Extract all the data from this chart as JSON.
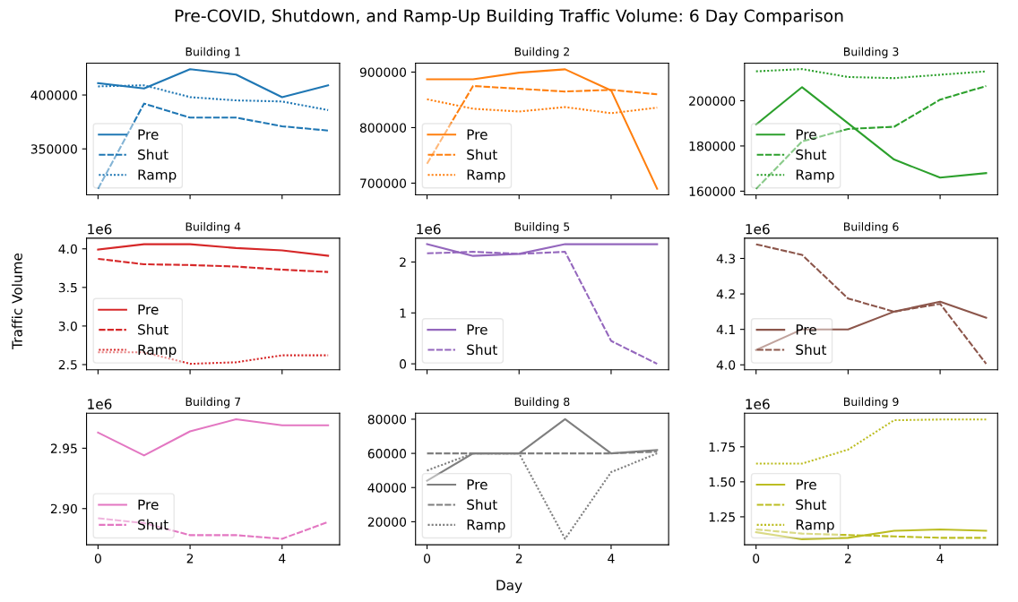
{
  "chart_data": [
    {
      "type": "line",
      "title": "Building 1",
      "annotations": [
        "Pre-COVID, Shutdown, and Ramp-Up Building Traffic Volume: 6 Day Comparison"
      ],
      "x": [
        0,
        1,
        2,
        3,
        4,
        5
      ],
      "xlim": [
        -0.25,
        5.25
      ],
      "xticks": [
        0,
        2,
        4
      ],
      "ylim": [
        307400,
        429500
      ],
      "yticks": [
        350000,
        400000
      ],
      "tick_labels": "y",
      "legend": "bottom left",
      "grid": false,
      "series": [
        {
          "name": "Pre",
          "color": "#1f77b4",
          "line_style": "solid",
          "values": [
            411000,
            406000,
            424000,
            419000,
            398000,
            409000
          ]
        },
        {
          "name": "Shut",
          "color": "#1f77b4",
          "line_style": "dashed",
          "values": [
            313000,
            392000,
            379000,
            379000,
            371000,
            367000
          ]
        },
        {
          "name": "Ramp",
          "color": "#1f77b4",
          "line_style": "dotted",
          "values": [
            408000,
            409000,
            398000,
            395000,
            394000,
            386000
          ]
        }
      ]
    },
    {
      "type": "line",
      "title": "Building 2",
      "x": [
        0,
        1,
        2,
        3,
        4,
        5
      ],
      "xlim": [
        -0.25,
        5.25
      ],
      "xticks": [
        0,
        2,
        4
      ],
      "ylim": [
        679000,
        916000
      ],
      "yticks": [
        700000,
        800000,
        900000
      ],
      "tick_labels": "y",
      "legend": "bottom left",
      "grid": false,
      "series": [
        {
          "name": "Pre",
          "color": "#ff7f0e",
          "line_style": "solid",
          "values": [
            887000,
            887000,
            899000,
            905000,
            867000,
            690000
          ]
        },
        {
          "name": "Shut",
          "color": "#ff7f0e",
          "line_style": "dashed",
          "values": [
            735000,
            875000,
            870000,
            865000,
            868000,
            860000
          ]
        },
        {
          "name": "Ramp",
          "color": "#ff7f0e",
          "line_style": "dotted",
          "values": [
            851000,
            834000,
            829000,
            837000,
            826000,
            836000
          ]
        }
      ]
    },
    {
      "type": "line",
      "title": "Building 3",
      "x": [
        0,
        1,
        2,
        3,
        4,
        5
      ],
      "xlim": [
        -0.25,
        5.25
      ],
      "xticks": [
        0,
        2,
        4
      ],
      "ylim": [
        158400,
        216600
      ],
      "yticks": [
        160000,
        180000,
        200000
      ],
      "tick_labels": "y",
      "legend": "bottom left",
      "grid": false,
      "series": [
        {
          "name": "Pre",
          "color": "#2ca02c",
          "line_style": "solid",
          "values": [
            189500,
            206000,
            190000,
            174000,
            166000,
            168000
          ]
        },
        {
          "name": "Shut",
          "color": "#2ca02c",
          "line_style": "dashed",
          "values": [
            161000,
            182000,
            187500,
            188500,
            200500,
            206500
          ]
        },
        {
          "name": "Ramp",
          "color": "#2ca02c",
          "line_style": "dotted",
          "values": [
            213000,
            214000,
            210500,
            210000,
            211500,
            213000
          ]
        }
      ]
    },
    {
      "type": "line",
      "title": "Building 4",
      "ylabel": "Traffic Volume",
      "annotations": [
        "1e6"
      ],
      "x": [
        0,
        1,
        2,
        3,
        4,
        5
      ],
      "xlim": [
        -0.25,
        5.25
      ],
      "xticks": [
        0,
        2,
        4
      ],
      "ylim": [
        2.4325,
        4.1375
      ],
      "yticks": [
        2.5,
        {
          "value": 3,
          "label": "3.0"
        },
        3.5,
        {
          "value": 4,
          "label": "4.0"
        }
      ],
      "tick_labels": "y",
      "legend": "bottom left",
      "grid": false,
      "series": [
        {
          "name": "Pre",
          "color": "#d62728",
          "line_style": "solid",
          "values": [
            3.99,
            4.06,
            4.06,
            4.01,
            3.98,
            3.91
          ]
        },
        {
          "name": "Shut",
          "color": "#d62728",
          "line_style": "dashed",
          "values": [
            3.87,
            3.8,
            3.79,
            3.77,
            3.73,
            3.7
          ]
        },
        {
          "name": "Ramp",
          "color": "#d62728",
          "line_style": "dotted",
          "values": [
            2.66,
            2.66,
            2.51,
            2.53,
            2.62,
            2.62
          ]
        }
      ]
    },
    {
      "type": "line",
      "title": "Building 5",
      "annotations": [
        "1e6"
      ],
      "x": [
        0,
        1,
        2,
        3,
        4,
        5
      ],
      "xlim": [
        -0.25,
        5.25
      ],
      "xticks": [
        0,
        2,
        4
      ],
      "ylim": [
        -0.1175,
        2.4675
      ],
      "yticks": [
        0,
        1,
        2
      ],
      "tick_labels": "y",
      "legend": "bottom left",
      "grid": false,
      "series": [
        {
          "name": "Pre",
          "color": "#9467bd",
          "line_style": "solid",
          "values": [
            2.35,
            2.12,
            2.16,
            2.35,
            2.35,
            2.35
          ]
        },
        {
          "name": "Shut",
          "color": "#9467bd",
          "line_style": "dashed",
          "values": [
            2.17,
            2.2,
            2.16,
            2.2,
            0.45,
            0
          ]
        }
      ]
    },
    {
      "type": "line",
      "title": "Building 6",
      "annotations": [
        "1e6"
      ],
      "x": [
        0,
        1,
        2,
        3,
        4,
        5
      ],
      "xlim": [
        -0.25,
        5.25
      ],
      "xticks": [
        0,
        2,
        4
      ],
      "ylim": [
        3.986,
        4.357
      ],
      "yticks": [
        {
          "value": 4,
          "label": "4.0"
        },
        4.1,
        4.2,
        4.3
      ],
      "tick_labels": "y",
      "legend": "bottom left",
      "grid": false,
      "series": [
        {
          "name": "Pre",
          "color": "#8c564b",
          "line_style": "solid",
          "values": [
            4.042,
            4.1,
            4.1,
            4.15,
            4.178,
            4.133
          ]
        },
        {
          "name": "Shut",
          "color": "#8c564b",
          "line_style": "dashed",
          "values": [
            4.34,
            4.31,
            4.187,
            4.15,
            4.172,
            4.003
          ]
        }
      ]
    },
    {
      "type": "line",
      "title": "Building 7",
      "annotations": [
        "1e6"
      ],
      "x": [
        0,
        1,
        2,
        3,
        4,
        5
      ],
      "xlim": [
        -0.25,
        5.25
      ],
      "xticks": [
        0,
        2,
        4
      ],
      "ylim": [
        2.87,
        2.979
      ],
      "yticks": [
        {
          "value": 2.9,
          "label": "2.90"
        },
        2.95
      ],
      "legend": "bottom left",
      "grid": false,
      "series": [
        {
          "name": "Pre",
          "color": "#e377c2",
          "line_style": "solid",
          "values": [
            2.963,
            2.944,
            2.964,
            2.974,
            2.969,
            2.969
          ]
        },
        {
          "name": "Shut",
          "color": "#e377c2",
          "line_style": "dashed",
          "values": [
            2.892,
            2.888,
            2.878,
            2.878,
            2.875,
            2.889
          ]
        }
      ]
    },
    {
      "type": "line",
      "title": "Building 8",
      "xlabel": "Day",
      "x": [
        0,
        1,
        2,
        3,
        4,
        5
      ],
      "xlim": [
        -0.25,
        5.25
      ],
      "xticks": [
        0,
        2,
        4
      ],
      "ylim": [
        6500,
        83500
      ],
      "yticks": [
        20000,
        40000,
        60000,
        80000
      ],
      "legend": "bottom left",
      "grid": false,
      "series": [
        {
          "name": "Pre",
          "color": "#7f7f7f",
          "line_style": "solid",
          "values": [
            44000,
            60000,
            60000,
            80000,
            60000,
            62000
          ]
        },
        {
          "name": "Shut",
          "color": "#7f7f7f",
          "line_style": "dashed",
          "values": [
            60000,
            60000,
            60000,
            60000,
            60000,
            61000
          ]
        },
        {
          "name": "Ramp",
          "color": "#7f7f7f",
          "line_style": "dotted",
          "values": [
            50000,
            60000,
            60000,
            10000,
            49000,
            60000
          ]
        }
      ]
    },
    {
      "type": "line",
      "title": "Building 9",
      "annotations": [
        "1e6"
      ],
      "x": [
        0,
        1,
        2,
        3,
        4,
        5
      ],
      "xlim": [
        -0.25,
        5.25
      ],
      "xticks": [
        0,
        2,
        4
      ],
      "ylim": [
        1.05,
        1.99
      ],
      "yticks": [
        1.25,
        {
          "value": 1.5,
          "label": "1.50"
        },
        1.75
      ],
      "legend": "bottom left",
      "grid": false,
      "series": [
        {
          "name": "Pre",
          "color": "#bcbd22",
          "line_style": "solid",
          "values": [
            1.14,
            1.09,
            1.1,
            1.15,
            1.16,
            1.15
          ]
        },
        {
          "name": "Shut",
          "color": "#bcbd22",
          "line_style": "dashed",
          "values": [
            1.16,
            1.13,
            1.12,
            1.11,
            1.1,
            1.1
          ]
        },
        {
          "name": "Ramp",
          "color": "#bcbd22",
          "line_style": "dotted",
          "values": [
            1.63,
            1.63,
            1.73,
            1.94,
            1.945,
            1.945
          ]
        }
      ]
    }
  ]
}
